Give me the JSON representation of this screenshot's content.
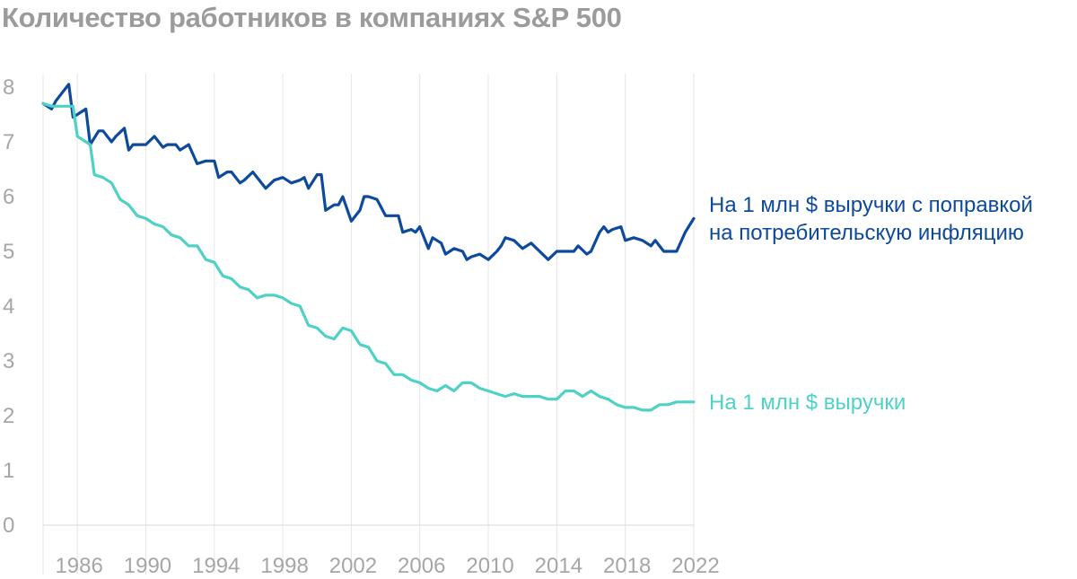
{
  "chart_data": {
    "type": "line",
    "title": "Количество работников в компаниях S&P 500",
    "xlabel": "",
    "ylabel": "",
    "xlim": [
      1984,
      2022
    ],
    "ylim": [
      0,
      8
    ],
    "yticks": [
      "0",
      "1",
      "2",
      "3",
      "4",
      "5",
      "6",
      "7",
      "8"
    ],
    "xticks": [
      "1986",
      "1990",
      "1994",
      "1998",
      "2002",
      "2006",
      "2010",
      "2014",
      "2018",
      "2022"
    ],
    "grid": "vertical",
    "series": [
      {
        "name": "На 1 млн $ выручки с поправкой на потребительскую инфляцию",
        "label_lines": [
          "На 1 млн $ выручки с поправкой",
          "на потребительскую инфляцию"
        ],
        "color": "#0d4a9c",
        "x": [
          1984.0,
          1984.5,
          1984.75,
          1985.5,
          1985.75,
          1986.0,
          1986.5,
          1986.75,
          1987.25,
          1987.5,
          1988.0,
          1988.25,
          1988.75,
          1989.0,
          1989.25,
          1990.0,
          1990.5,
          1991.0,
          1991.25,
          1991.75,
          1992.0,
          1992.5,
          1993.0,
          1993.5,
          1994.0,
          1994.25,
          1994.75,
          1995.0,
          1995.5,
          1995.75,
          1996.25,
          1997.0,
          1997.5,
          1998.0,
          1998.5,
          1999.0,
          1999.25,
          1999.5,
          2000.0,
          2000.25,
          2000.5,
          2001.0,
          2001.25,
          2001.5,
          2002.0,
          2002.5,
          2002.75,
          2003.0,
          2003.5,
          2004.0,
          2004.25,
          2004.75,
          2005.0,
          2005.5,
          2005.75,
          2006.0,
          2006.5,
          2006.75,
          2007.25,
          2007.5,
          2008.0,
          2008.5,
          2008.75,
          2009.0,
          2009.5,
          2010.0,
          2010.5,
          2010.75,
          2011.0,
          2011.5,
          2012.0,
          2012.5,
          2013.0,
          2013.5,
          2014.0,
          2014.25,
          2014.75,
          2015.0,
          2015.25,
          2015.75,
          2016.0,
          2016.5,
          2016.75,
          2017.0,
          2017.25,
          2017.75,
          2018.0,
          2018.5,
          2019.0,
          2019.5,
          2019.75,
          2020.0,
          2020.25,
          2021.0,
          2021.5,
          2022.0
        ],
        "values": [
          7.7,
          7.6,
          7.75,
          8.05,
          7.45,
          7.5,
          7.6,
          6.95,
          7.2,
          7.2,
          7.0,
          7.1,
          7.25,
          6.85,
          6.95,
          6.95,
          7.1,
          6.9,
          6.95,
          6.95,
          6.85,
          6.95,
          6.6,
          6.65,
          6.65,
          6.35,
          6.45,
          6.45,
          6.25,
          6.3,
          6.45,
          6.15,
          6.3,
          6.35,
          6.25,
          6.3,
          6.35,
          6.15,
          6.4,
          6.4,
          5.75,
          5.85,
          5.85,
          6.0,
          5.55,
          5.75,
          6.0,
          6.0,
          5.95,
          5.65,
          5.65,
          5.65,
          5.35,
          5.4,
          5.35,
          5.45,
          5.05,
          5.25,
          5.15,
          4.95,
          5.05,
          5.0,
          4.85,
          4.9,
          4.95,
          4.85,
          5.0,
          5.1,
          5.25,
          5.2,
          5.05,
          5.15,
          5.0,
          4.85,
          5.0,
          5.0,
          5.0,
          5.0,
          5.1,
          4.95,
          5.0,
          5.35,
          5.45,
          5.35,
          5.4,
          5.45,
          5.2,
          5.25,
          5.2,
          5.1,
          5.2,
          5.1,
          5.0,
          5.0,
          5.35,
          5.6
        ],
        "end_label_anchor": 5.6
      },
      {
        "name": "На 1 млн $ выручки",
        "label_lines": [
          "На 1 млн $ выручки"
        ],
        "color": "#4fd1c5",
        "x": [
          1984.0,
          1984.5,
          1985.0,
          1985.75,
          1986.0,
          1986.75,
          1987.0,
          1987.5,
          1988.0,
          1988.5,
          1989.0,
          1989.5,
          1990.0,
          1990.5,
          1991.0,
          1991.5,
          1992.0,
          1992.5,
          1993.0,
          1993.5,
          1994.0,
          1994.5,
          1995.0,
          1995.5,
          1996.0,
          1996.5,
          1997.0,
          1997.5,
          1998.0,
          1998.5,
          1999.0,
          1999.5,
          2000.0,
          2000.5,
          2001.0,
          2001.5,
          2002.0,
          2002.5,
          2003.0,
          2003.5,
          2004.0,
          2004.5,
          2005.0,
          2005.5,
          2006.0,
          2006.5,
          2007.0,
          2007.5,
          2008.0,
          2008.5,
          2009.0,
          2009.5,
          2010.0,
          2010.5,
          2011.0,
          2011.5,
          2012.0,
          2012.5,
          2013.0,
          2013.5,
          2014.0,
          2014.5,
          2015.0,
          2015.5,
          2016.0,
          2016.5,
          2017.0,
          2017.5,
          2018.0,
          2018.5,
          2019.0,
          2019.5,
          2020.0,
          2020.5,
          2021.0,
          2021.5,
          2022.0
        ],
        "values": [
          7.7,
          7.65,
          7.65,
          7.65,
          7.1,
          6.95,
          6.4,
          6.35,
          6.25,
          5.95,
          5.85,
          5.65,
          5.6,
          5.5,
          5.45,
          5.3,
          5.25,
          5.1,
          5.1,
          4.85,
          4.8,
          4.55,
          4.5,
          4.35,
          4.3,
          4.15,
          4.2,
          4.2,
          4.15,
          4.05,
          4.0,
          3.65,
          3.6,
          3.45,
          3.4,
          3.6,
          3.55,
          3.3,
          3.25,
          3.0,
          2.95,
          2.75,
          2.75,
          2.65,
          2.6,
          2.5,
          2.45,
          2.55,
          2.45,
          2.6,
          2.6,
          2.5,
          2.45,
          2.4,
          2.35,
          2.4,
          2.35,
          2.35,
          2.35,
          2.3,
          2.3,
          2.45,
          2.45,
          2.35,
          2.45,
          2.35,
          2.3,
          2.2,
          2.15,
          2.15,
          2.1,
          2.1,
          2.2,
          2.2,
          2.25,
          2.25,
          2.25
        ],
        "end_label_anchor": 2.25
      }
    ]
  }
}
